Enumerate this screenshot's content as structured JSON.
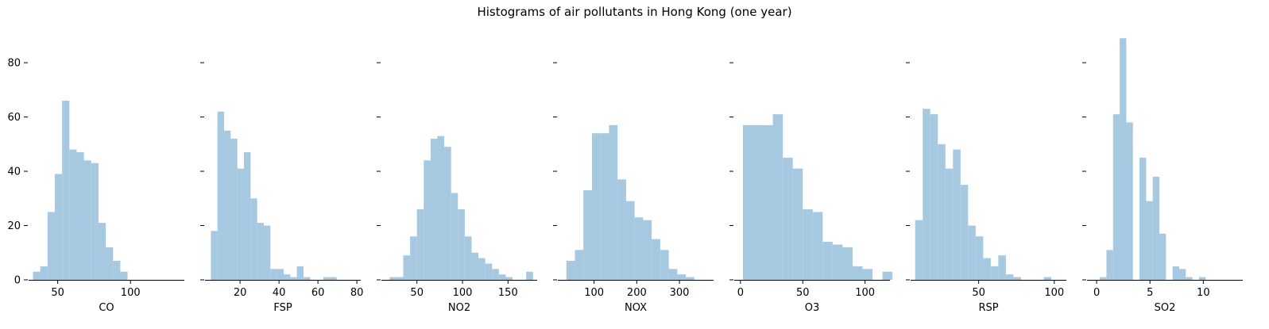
{
  "chart_data": {
    "type": "histogram",
    "title": "Histograms of air pollutants in Hong Kong (one year)",
    "bar_color": "#a6c8e0",
    "y_lim": [
      0,
      92
    ],
    "y_ticks": [
      0,
      20,
      40,
      60,
      80
    ],
    "panels": [
      {
        "name": "CO",
        "xlabel": "CO",
        "x_lim": [
          30,
          137
        ],
        "x_ticks": [
          50,
          100
        ],
        "bin_start": 33,
        "bin_width": 5,
        "counts": [
          3,
          5,
          25,
          39,
          66,
          48,
          47,
          44,
          43,
          21,
          12,
          7,
          3
        ]
      },
      {
        "name": "FSP",
        "xlabel": "FSP",
        "x_lim": [
          2,
          82
        ],
        "x_ticks": [
          20,
          40,
          60,
          80
        ],
        "bin_start": 5,
        "bin_width": 3.4,
        "counts": [
          18,
          62,
          55,
          52,
          41,
          47,
          30,
          21,
          20,
          4,
          4,
          2,
          1,
          5,
          1,
          0,
          0,
          1,
          1
        ]
      },
      {
        "name": "NO2",
        "xlabel": "NO2",
        "x_lim": [
          11,
          182
        ],
        "x_ticks": [
          50,
          100,
          150
        ],
        "bin_start": 20,
        "bin_width": 7.5,
        "counts": [
          1,
          1,
          9,
          16,
          26,
          44,
          52,
          53,
          49,
          32,
          26,
          16,
          10,
          8,
          6,
          4,
          2,
          1,
          0,
          0,
          3
        ]
      },
      {
        "name": "NOX",
        "xlabel": "NOX",
        "x_lim": [
          15,
          380
        ],
        "x_ticks": [
          100,
          200,
          300
        ],
        "bin_start": 35,
        "bin_width": 20,
        "counts": [
          7,
          11,
          33,
          54,
          54,
          57,
          37,
          29,
          23,
          22,
          15,
          11,
          4,
          2,
          1
        ]
      },
      {
        "name": "O3",
        "xlabel": "O3",
        "x_lim": [
          -5,
          120
        ],
        "x_ticks": [
          0,
          50,
          100
        ],
        "bin_start": 2,
        "bin_width": 8,
        "counts": [
          57,
          57,
          57,
          61,
          45,
          41,
          26,
          25,
          14,
          13,
          12,
          5,
          4,
          0,
          3
        ]
      },
      {
        "name": "RSP",
        "xlabel": "RSP",
        "x_lim": [
          5,
          108
        ],
        "x_ticks": [
          50,
          100
        ],
        "bin_start": 8,
        "bin_width": 5,
        "counts": [
          22,
          63,
          61,
          50,
          41,
          48,
          35,
          20,
          16,
          8,
          5,
          9,
          2,
          1,
          0,
          0,
          0,
          1
        ]
      },
      {
        "name": "SO2",
        "xlabel": "SO2",
        "x_lim": [
          -0.9,
          13.7
        ],
        "x_ticks": [
          0,
          5,
          10
        ],
        "bin_start": 0.3,
        "bin_width": 0.62,
        "counts": [
          1,
          11,
          61,
          89,
          58,
          0,
          45,
          29,
          38,
          17,
          0,
          5,
          4,
          1,
          0,
          1
        ]
      }
    ]
  }
}
